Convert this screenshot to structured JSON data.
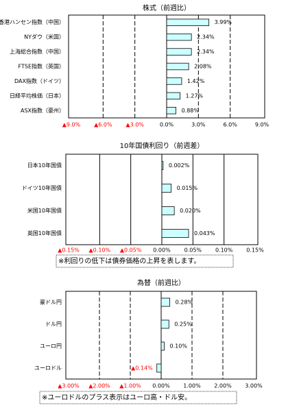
{
  "chart_data": [
    {
      "type": "hbar",
      "title": "株式（前週比）",
      "categories": [
        "香港ハンセン指数（中国）",
        "NYダウ（米国）",
        "上海総合指数（中国）",
        "FTSE指数（英国）",
        "DAX指数（ドイツ）",
        "日経平均株価（日本）",
        "ASX指数（豪州）"
      ],
      "values": [
        3.99,
        2.34,
        2.34,
        2.08,
        1.42,
        1.27,
        0.88
      ],
      "value_labels": [
        "3.99%",
        "2.34%",
        "2.34%",
        "2.08%",
        "1.42%",
        "1.27%",
        "0.88%"
      ],
      "color": "#ccffff",
      "negative_color": "#ff0000",
      "grid_style": "dashed",
      "xlim": [
        -9,
        9
      ],
      "xticks": [
        {
          "value": -9,
          "label": "▲9.0%"
        },
        {
          "value": -6,
          "label": "▲6.0%"
        },
        {
          "value": -3,
          "label": "▲3.0%"
        },
        {
          "value": 0,
          "label": "0.0%"
        },
        {
          "value": 3,
          "label": "3.0%"
        },
        {
          "value": 6,
          "label": "6.0%"
        },
        {
          "value": 9,
          "label": "9.0%"
        }
      ]
    },
    {
      "type": "hbar",
      "title": "10年国債利回り（前週差）",
      "categories": [
        "日本10年国債",
        "ドイツ10年国債",
        "米国10年国債",
        "英国10年国債"
      ],
      "values": [
        0.002,
        0.015,
        0.02,
        0.043
      ],
      "value_labels": [
        "0.002%",
        "0.015%",
        "0.020%",
        "0.043%"
      ],
      "color": "#ccffff",
      "negative_color": "#ff0000",
      "grid_style": "solid",
      "xlim": [
        -0.15,
        0.15
      ],
      "xticks": [
        {
          "value": -0.15,
          "label": "▲0.15%"
        },
        {
          "value": -0.1,
          "label": "▲0.10%"
        },
        {
          "value": -0.05,
          "label": "▲0.05%"
        },
        {
          "value": 0,
          "label": "0.00%"
        },
        {
          "value": 0.05,
          "label": "0.05%"
        },
        {
          "value": 0.1,
          "label": "0.10%"
        },
        {
          "value": 0.15,
          "label": "0.15%"
        }
      ],
      "note": "※利回りの低下は債券価格の上昇を表します。"
    },
    {
      "type": "hbar",
      "title": "為替（前週比）",
      "categories": [
        "豪ドル円",
        "ドル円",
        "ユーロ円",
        "ユーロドル"
      ],
      "values": [
        0.28,
        0.25,
        0.1,
        -0.14
      ],
      "value_labels": [
        "0.28%",
        "0.25%",
        "0.10%",
        "▲0.14%"
      ],
      "color": "#ccffff",
      "negative_color": "#ff0000",
      "grid_style": "dashed",
      "xlim": [
        -3,
        3
      ],
      "xticks": [
        {
          "value": -3,
          "label": "▲3.00%"
        },
        {
          "value": -2,
          "label": "▲2.00%"
        },
        {
          "value": -1,
          "label": "▲1.00%"
        },
        {
          "value": 0,
          "label": "0.00%"
        },
        {
          "value": 1,
          "label": "1.00%"
        },
        {
          "value": 2,
          "label": "2.00%"
        },
        {
          "value": 3,
          "label": "3.00%"
        }
      ],
      "note": "※ユーロドルのプラス表示はユーロ高・ドル安。"
    }
  ]
}
